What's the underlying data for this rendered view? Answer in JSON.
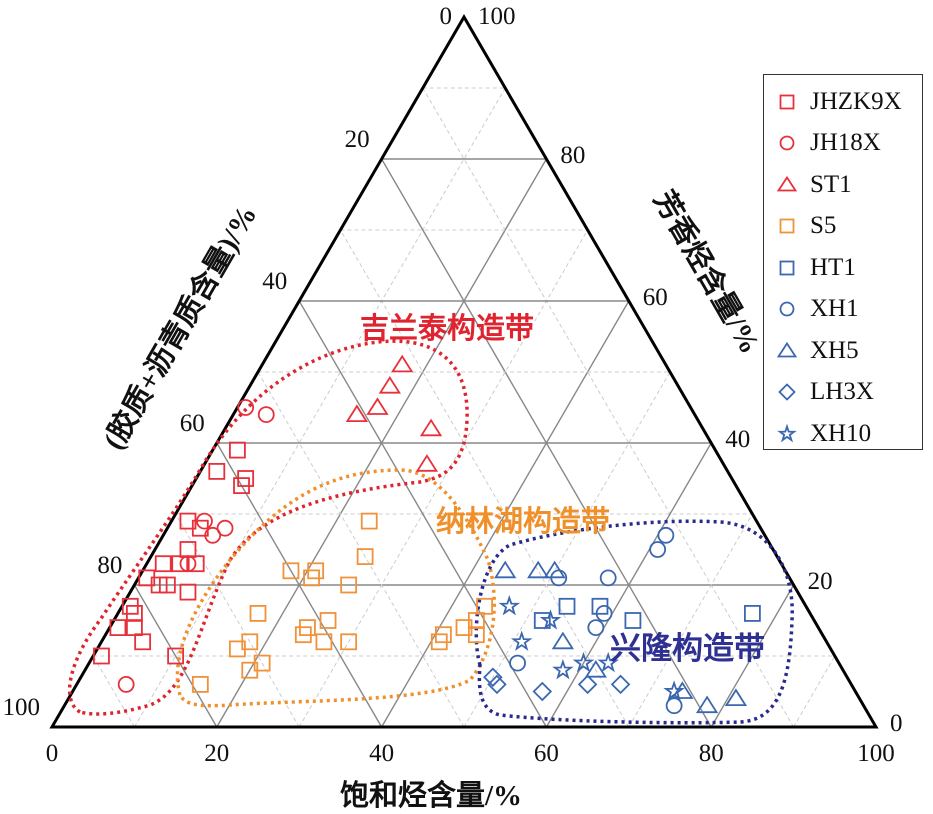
{
  "chart_data": {
    "type": "scatter",
    "subtype": "ternary",
    "axes": {
      "bottom": {
        "label": "饱和烃含量/%",
        "ticks": [
          0,
          20,
          40,
          60,
          80,
          100
        ]
      },
      "right": {
        "label": "芳香烃含量/%",
        "ticks": [
          0,
          20,
          40,
          60,
          80,
          100
        ]
      },
      "left": {
        "label": "(胶质+沥青质含量)/%",
        "ticks": [
          0,
          20,
          40,
          60,
          80,
          100
        ]
      }
    },
    "grid": true,
    "legend_position": "top-right",
    "point_order": [
      "saturates",
      "aromatics",
      "resins_asphaltenes"
    ],
    "series": [
      {
        "name": "JHZK9X",
        "color": "#e8303a",
        "marker": "square",
        "points": [
          [
            3,
            39,
            58
          ],
          [
            2,
            36,
            62
          ],
          [
            6,
            35,
            59
          ],
          [
            6,
            34,
            60
          ],
          [
            2,
            29,
            69
          ],
          [
            4,
            28,
            68
          ],
          [
            4,
            25,
            71
          ],
          [
            4,
            23,
            73
          ],
          [
            6,
            23,
            71
          ],
          [
            2,
            23,
            75
          ],
          [
            1,
            21,
            78
          ],
          [
            3,
            20,
            77
          ],
          [
            4,
            20,
            76
          ],
          [
            7,
            19,
            74
          ],
          [
            1,
            17,
            82
          ],
          [
            2,
            16,
            82
          ],
          [
            1,
            14,
            85
          ],
          [
            3,
            14,
            83
          ],
          [
            5,
            12,
            83
          ],
          [
            1,
            10,
            89
          ],
          [
            10,
            10,
            80
          ]
        ]
      },
      {
        "name": "JH18X",
        "color": "#e8303a",
        "marker": "circle",
        "points": [
          [
            1,
            45,
            54
          ],
          [
            4,
            44,
            52
          ],
          [
            4,
            29,
            67
          ],
          [
            6,
            27,
            67
          ],
          [
            7,
            28,
            65
          ],
          [
            5,
            23,
            72
          ],
          [
            6,
            6,
            88
          ]
        ]
      },
      {
        "name": "ST1",
        "color": "#e8303a",
        "marker": "triangle",
        "points": [
          [
            17,
            51,
            32
          ],
          [
            17,
            48,
            35
          ],
          [
            17,
            45,
            38
          ],
          [
            15,
            44,
            41
          ],
          [
            25,
            42,
            33
          ],
          [
            27,
            37,
            36
          ]
        ]
      },
      {
        "name": "S5",
        "color": "#f0923a",
        "marker": "square",
        "points": [
          [
            24,
            29,
            47
          ],
          [
            26,
            24,
            50
          ],
          [
            18,
            22,
            60
          ],
          [
            21,
            21,
            58
          ],
          [
            21,
            22,
            57
          ],
          [
            26,
            20,
            54
          ],
          [
            17,
            16,
            67
          ],
          [
            26,
            15,
            59
          ],
          [
            24,
            14,
            62
          ],
          [
            24,
            13,
            63
          ],
          [
            27,
            12,
            61
          ],
          [
            30,
            12,
            58
          ],
          [
            18,
            12,
            70
          ],
          [
            17,
            11,
            72
          ],
          [
            20,
            8,
            72
          ],
          [
            21,
            9,
            70
          ],
          [
            15,
            6,
            79
          ],
          [
            44,
            17,
            39
          ],
          [
            44,
            15,
            41
          ],
          [
            43,
            14,
            43
          ],
          [
            45,
            13,
            42
          ],
          [
            41,
            13,
            46
          ],
          [
            41,
            12,
            47
          ]
        ]
      },
      {
        "name": "HT1",
        "color": "#3a67b0",
        "marker": "square",
        "points": [
          [
            54,
            17,
            29
          ],
          [
            58,
            17,
            25
          ],
          [
            52,
            15,
            33
          ],
          [
            63,
            15,
            22
          ],
          [
            77,
            16,
            7
          ]
        ]
      },
      {
        "name": "XH1",
        "color": "#3a67b0",
        "marker": "circle",
        "points": [
          [
            61,
            27,
            12
          ],
          [
            61,
            25,
            14
          ],
          [
            51,
            21,
            28
          ],
          [
            57,
            21,
            22
          ],
          [
            59,
            16,
            25
          ],
          [
            59,
            14,
            27
          ],
          [
            52,
            9,
            39
          ],
          [
            74,
            3,
            23
          ]
        ]
      },
      {
        "name": "XH5",
        "color": "#3a67b0",
        "marker": "triangle",
        "points": [
          [
            44,
            22,
            34
          ],
          [
            48,
            22,
            30
          ],
          [
            50,
            22,
            28
          ],
          [
            56,
            12,
            32
          ],
          [
            62,
            8,
            30
          ],
          [
            74,
            5,
            21
          ],
          [
            78,
            3,
            19
          ],
          [
            81,
            4,
            15
          ]
        ]
      },
      {
        "name": "LH3X",
        "color": "#3a67b0",
        "marker": "diamond",
        "points": [
          [
            50,
            7,
            43
          ],
          [
            51,
            6,
            43
          ],
          [
            57,
            5,
            38
          ],
          [
            62,
            6,
            32
          ],
          [
            66,
            6,
            28
          ]
        ]
      },
      {
        "name": "XH10",
        "color": "#3a67b0",
        "marker": "star",
        "points": [
          [
            47,
            17,
            36
          ],
          [
            53,
            15,
            32
          ],
          [
            51,
            12,
            37
          ],
          [
            58,
            8,
            34
          ],
          [
            60,
            9,
            31
          ],
          [
            63,
            9,
            28
          ],
          [
            73,
            5,
            22
          ]
        ]
      }
    ],
    "regions": [
      {
        "label": "吉兰泰构造带",
        "color": "#e0242f"
      },
      {
        "label": "纳林湖构造带",
        "color": "#f0902a"
      },
      {
        "label": "兴隆构造带",
        "color": "#2e3192"
      }
    ]
  }
}
